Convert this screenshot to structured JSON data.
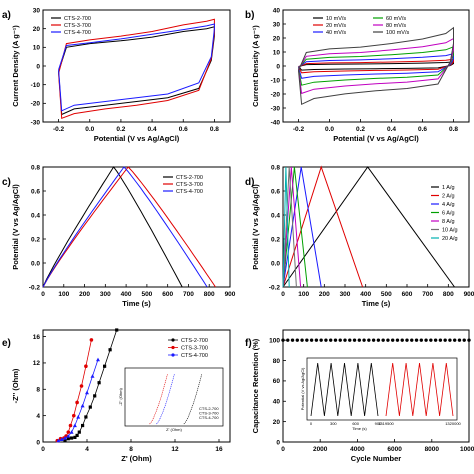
{
  "figure": {
    "panels": [
      "a)",
      "b)",
      "c)",
      "d)",
      "e)",
      "f)"
    ]
  },
  "chart_data": [
    {
      "type": "line",
      "title": "",
      "label": "a)",
      "xlabel": "Potential (V vs Ag/AgCl)",
      "ylabel": "Current Density (A g⁻¹)",
      "xlim": [
        -0.3,
        0.9
      ],
      "ylim": [
        -30,
        30
      ],
      "xticks": [
        -0.2,
        0.0,
        0.2,
        0.4,
        0.6,
        0.8
      ],
      "yticks": [
        -30,
        -20,
        -10,
        0,
        10,
        20,
        30
      ],
      "legend": "top-left",
      "series": [
        {
          "name": "CTS-2-700",
          "color": "#000000",
          "upper": [
            [
              -0.2,
              -3
            ],
            [
              -0.15,
              10
            ],
            [
              0.0,
              12
            ],
            [
              0.2,
              13.5
            ],
            [
              0.4,
              15.5
            ],
            [
              0.6,
              18.5
            ],
            [
              0.75,
              20
            ],
            [
              0.8,
              21
            ]
          ],
          "lower": [
            [
              0.8,
              16
            ],
            [
              0.78,
              3
            ],
            [
              0.7,
              -12
            ],
            [
              0.5,
              -17
            ],
            [
              0.3,
              -19
            ],
            [
              0.1,
              -21
            ],
            [
              -0.1,
              -23
            ],
            [
              -0.18,
              -26
            ],
            [
              -0.2,
              -3
            ]
          ]
        },
        {
          "name": "CTS-3-700",
          "color": "#e00000",
          "upper": [
            [
              -0.2,
              -4
            ],
            [
              -0.15,
              12
            ],
            [
              0.0,
              14
            ],
            [
              0.2,
              16
            ],
            [
              0.4,
              18.5
            ],
            [
              0.6,
              22
            ],
            [
              0.75,
              24
            ],
            [
              0.8,
              25
            ]
          ],
          "lower": [
            [
              0.8,
              18
            ],
            [
              0.78,
              4
            ],
            [
              0.7,
              -13
            ],
            [
              0.5,
              -18.5
            ],
            [
              0.3,
              -21
            ],
            [
              0.1,
              -23
            ],
            [
              -0.1,
              -25.5
            ],
            [
              -0.18,
              -28
            ],
            [
              -0.2,
              -4
            ]
          ]
        },
        {
          "name": "CTS-4-700",
          "color": "#1a1aff",
          "upper": [
            [
              -0.2,
              -2
            ],
            [
              -0.15,
              11
            ],
            [
              0.0,
              12.5
            ],
            [
              0.2,
              14.5
            ],
            [
              0.4,
              17
            ],
            [
              0.6,
              19.5
            ],
            [
              0.75,
              21.5
            ],
            [
              0.8,
              22.5
            ]
          ],
          "lower": [
            [
              0.8,
              20
            ],
            [
              0.78,
              5
            ],
            [
              0.7,
              -9
            ],
            [
              0.5,
              -15
            ],
            [
              0.3,
              -17
            ],
            [
              0.1,
              -19
            ],
            [
              -0.1,
              -21
            ],
            [
              -0.18,
              -24
            ],
            [
              -0.2,
              -2
            ]
          ]
        }
      ]
    },
    {
      "type": "line",
      "title": "",
      "label": "b)",
      "xlabel": "Potential (V vs Ag/AgCl)",
      "ylabel": "Current Density (A g⁻¹)",
      "xlim": [
        -0.3,
        0.9
      ],
      "ylim": [
        -40,
        40
      ],
      "xticks": [
        -0.2,
        0.0,
        0.2,
        0.4,
        0.6,
        0.8
      ],
      "yticks": [
        -40,
        -30,
        -20,
        -10,
        0,
        10,
        20,
        30,
        40
      ],
      "legend": "top",
      "series": [
        {
          "name": "10 mV/s",
          "color": "#000000",
          "scale": 3
        },
        {
          "name": "20 mV/s",
          "color": "#e00000",
          "scale": 5
        },
        {
          "name": "40 mV/s",
          "color": "#1a1aff",
          "scale": 9
        },
        {
          "name": "60 mV/s",
          "color": "#00a000",
          "scale": 14
        },
        {
          "name": "80 mV/s",
          "color": "#c000c0",
          "scale": 20
        },
        {
          "name": "100 mV/s",
          "color": "#404040",
          "scale": 28
        }
      ]
    },
    {
      "type": "line",
      "title": "",
      "label": "c)",
      "xlabel": "Time (s)",
      "ylabel": "Potential (V vs Ag/AgCl)",
      "xlim": [
        0,
        900
      ],
      "ylim": [
        -0.2,
        0.8
      ],
      "xticks": [
        0,
        100,
        200,
        300,
        400,
        500,
        600,
        700,
        800,
        900
      ],
      "yticks": [
        -0.2,
        0.0,
        0.2,
        0.4,
        0.6,
        0.8
      ],
      "legend": "top-right",
      "series": [
        {
          "name": "CTS-2-700",
          "color": "#000000",
          "peak_time": 340,
          "end_time": 670
        },
        {
          "name": "CTS-3-700",
          "color": "#e00000",
          "peak_time": 410,
          "end_time": 830
        },
        {
          "name": "CTS-4-700",
          "color": "#1a1aff",
          "peak_time": 390,
          "end_time": 790
        }
      ]
    },
    {
      "type": "line",
      "title": "",
      "label": "d)",
      "xlabel": "Time (s)",
      "ylabel": "Potential (V vs Ag/AgCl)",
      "xlim": [
        0,
        900
      ],
      "ylim": [
        -0.2,
        0.8
      ],
      "xticks": [
        0,
        100,
        200,
        300,
        400,
        500,
        600,
        700,
        800,
        900
      ],
      "yticks": [
        -0.2,
        0.0,
        0.2,
        0.4,
        0.6,
        0.8
      ],
      "legend": "right",
      "series": [
        {
          "name": "1 A/g",
          "color": "#000000",
          "peak_time": 410,
          "end_time": 830
        },
        {
          "name": "2 A/g",
          "color": "#e00000",
          "peak_time": 185,
          "end_time": 385
        },
        {
          "name": "4 A/g",
          "color": "#1a1aff",
          "peak_time": 88,
          "end_time": 185
        },
        {
          "name": "6 A/g",
          "color": "#00a000",
          "peak_time": 55,
          "end_time": 118
        },
        {
          "name": "8 A/g",
          "color": "#c000c0",
          "peak_time": 40,
          "end_time": 85
        },
        {
          "name": "10 A/g",
          "color": "#707070",
          "peak_time": 30,
          "end_time": 65
        },
        {
          "name": "20 A/g",
          "color": "#00b0b0",
          "peak_time": 14,
          "end_time": 30
        }
      ]
    },
    {
      "type": "scatter",
      "title": "",
      "label": "e)",
      "xlabel": "Z' (Ohm)",
      "ylabel": "-Z'' (Ohm)",
      "xlim": [
        0,
        17
      ],
      "ylim": [
        0,
        17
      ],
      "xticks": [
        0,
        4,
        8,
        12,
        16
      ],
      "yticks": [
        0,
        4,
        8,
        12,
        16
      ],
      "legend": "top-right",
      "series": [
        {
          "name": "CTS-2-700",
          "color": "#000000",
          "marker": "square",
          "x": [
            2.0,
            2.3,
            2.6,
            2.9,
            3.1,
            3.3,
            3.6,
            3.9,
            4.3,
            4.7,
            5.1,
            5.6,
            6.1,
            6.7
          ],
          "y": [
            0.2,
            0.5,
            0.6,
            0.7,
            1.0,
            1.5,
            2.5,
            3.8,
            5.3,
            7.0,
            9.0,
            11.5,
            14.0,
            17.0
          ]
        },
        {
          "name": "CTS-3-700",
          "color": "#e00000",
          "marker": "circle",
          "x": [
            1.3,
            1.6,
            1.9,
            2.1,
            2.3,
            2.5,
            2.8,
            3.1,
            3.5,
            3.9,
            4.4
          ],
          "y": [
            0.2,
            0.5,
            0.6,
            0.9,
            1.5,
            2.5,
            4.0,
            6.0,
            8.5,
            11.5,
            15.5
          ]
        },
        {
          "name": "CTS-4-700",
          "color": "#1a1aff",
          "marker": "triangle",
          "x": [
            1.4,
            1.7,
            2.0,
            2.3,
            2.6,
            2.9,
            3.2,
            3.6,
            4.0,
            4.5,
            5.0
          ],
          "y": [
            0.2,
            0.4,
            0.6,
            0.9,
            1.5,
            2.5,
            3.8,
            5.5,
            7.5,
            10.0,
            12.5
          ]
        }
      ],
      "inset": {
        "xlabel": "Z' (Ohm)",
        "ylabel": "-Z'' (Ohm)",
        "legend": [
          "CTS-2-700",
          "CTS-3-700",
          "CTS-4-700"
        ]
      }
    },
    {
      "type": "scatter",
      "title": "",
      "label": "f)",
      "xlabel": "Cycle Number",
      "ylabel": "Capacitance Retention (%)",
      "xlim": [
        0,
        10000
      ],
      "ylim": [
        0,
        110
      ],
      "xticks": [
        0,
        2000,
        4000,
        6000,
        8000,
        10000
      ],
      "yticks": [
        0,
        20,
        40,
        60,
        80,
        100
      ],
      "series": [
        {
          "name": "",
          "color": "#000000",
          "marker": "circle",
          "value": 100,
          "count": 40
        }
      ],
      "inset": {
        "xlabel": "Time (s)",
        "ylabel": "Potential (V vs Ag/AgCl)",
        "xticks": [
          "0",
          "300",
          "600",
          "900",
          "1319500",
          "1320000"
        ]
      }
    }
  ]
}
